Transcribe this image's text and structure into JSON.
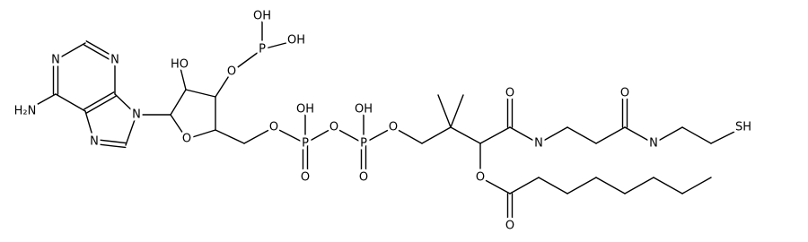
{
  "atoms": [
    "N",
    "N",
    "H₂N",
    "N",
    "N",
    "O",
    "HO",
    "O",
    "P",
    "OH",
    "OH",
    "O",
    "P",
    "OH",
    "O",
    "O",
    "P",
    "OH",
    "O",
    "O",
    "O",
    "N",
    "O",
    "N",
    "SH",
    "O",
    "O"
  ]
}
